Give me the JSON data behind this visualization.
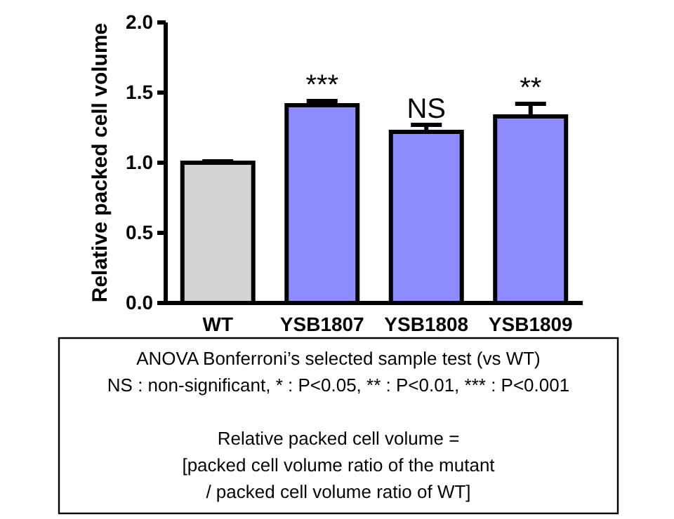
{
  "chart_data": {
    "type": "bar",
    "ylabel": "Relative packed cell volume",
    "categories": [
      "WT",
      "YSB1807",
      "YSB1808",
      "YSB1809"
    ],
    "values": [
      1.0,
      1.41,
      1.22,
      1.33
    ],
    "colors": [
      "#d3d3d3",
      "#8c8cff",
      "#8c8cff",
      "#8c8cff"
    ],
    "errors": [
      [
        1.0,
        1.01
      ],
      [
        1.41,
        1.44
      ],
      [
        1.22,
        1.27
      ],
      [
        1.33,
        1.42
      ]
    ],
    "ylim": [
      0,
      2
    ],
    "yticks": [
      {
        "value": 0,
        "label": "0.0"
      },
      {
        "value": 0.5,
        "label": "0.5"
      },
      {
        "value": 1,
        "label": "1.0"
      },
      {
        "value": 1.5,
        "label": "1.5"
      },
      {
        "value": 2,
        "label": "2.0"
      }
    ],
    "grid": false,
    "annotations": [
      {
        "text": "***",
        "x": "YSB1807",
        "y": 1.44
      },
      {
        "text": "NS",
        "x": "YSB1808",
        "y": 1.27
      },
      {
        "text": "**",
        "x": "YSB1809",
        "y": 1.42
      },
      "ANOVA Bonferroni’s selected sample test (vs WT)",
      "NS : non-significant, * : P<0.05, ** : P<0.01, *** : P<0.001",
      "Relative packed cell volume =",
      "[packed cell volume ratio of the mutant",
      "/ packed cell volume ratio of WT]"
    ]
  }
}
